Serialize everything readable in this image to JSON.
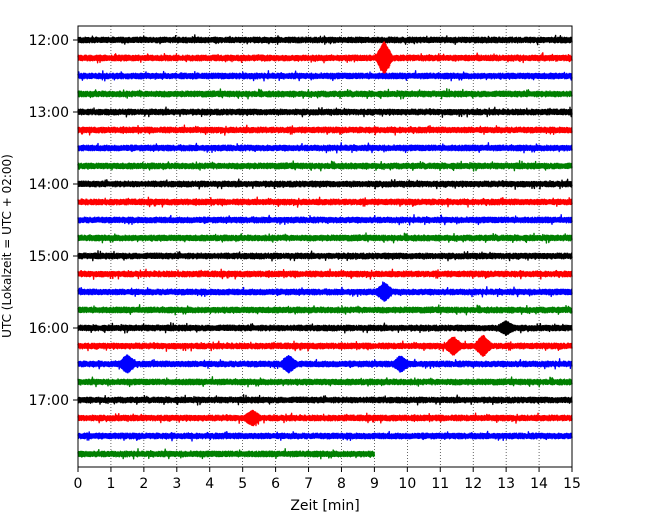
{
  "chart_data": {
    "type": "line",
    "title": "",
    "xlabel": "Zeit  [min]",
    "ylabel": "UTC (Lokalzeit = UTC + 02:00)",
    "xlim": [
      0,
      15
    ],
    "x_ticks": [
      0,
      1,
      2,
      3,
      4,
      5,
      6,
      7,
      8,
      9,
      10,
      11,
      12,
      13,
      14,
      15
    ],
    "y_tick_labels": [
      "12:00",
      "13:00",
      "14:00",
      "15:00",
      "16:00",
      "17:00"
    ],
    "grid": "vertical-dotted",
    "series": [
      {
        "start": "12:00",
        "color": "#000000",
        "duration_min": 15
      },
      {
        "start": "12:15",
        "color": "#ff0000",
        "duration_min": 15,
        "events": [
          {
            "t": 9.3,
            "amp": 1.0
          }
        ]
      },
      {
        "start": "12:30",
        "color": "#0000ff",
        "duration_min": 15
      },
      {
        "start": "12:45",
        "color": "#008000",
        "duration_min": 15
      },
      {
        "start": "13:00",
        "color": "#000000",
        "duration_min": 15
      },
      {
        "start": "13:15",
        "color": "#ff0000",
        "duration_min": 15
      },
      {
        "start": "13:30",
        "color": "#0000ff",
        "duration_min": 15
      },
      {
        "start": "13:45",
        "color": "#008000",
        "duration_min": 15
      },
      {
        "start": "14:00",
        "color": "#000000",
        "duration_min": 15
      },
      {
        "start": "14:15",
        "color": "#ff0000",
        "duration_min": 15
      },
      {
        "start": "14:30",
        "color": "#0000ff",
        "duration_min": 15
      },
      {
        "start": "14:45",
        "color": "#008000",
        "duration_min": 15
      },
      {
        "start": "15:00",
        "color": "#000000",
        "duration_min": 15
      },
      {
        "start": "15:15",
        "color": "#ff0000",
        "duration_min": 15
      },
      {
        "start": "15:30",
        "color": "#0000ff",
        "duration_min": 15,
        "events": [
          {
            "t": 9.3,
            "amp": 0.5
          }
        ]
      },
      {
        "start": "15:45",
        "color": "#008000",
        "duration_min": 15
      },
      {
        "start": "16:00",
        "color": "#000000",
        "duration_min": 15,
        "events": [
          {
            "t": 13.0,
            "amp": 0.35
          }
        ]
      },
      {
        "start": "16:15",
        "color": "#ff0000",
        "duration_min": 15,
        "events": [
          {
            "t": 11.4,
            "amp": 0.5
          },
          {
            "t": 12.3,
            "amp": 0.6
          }
        ]
      },
      {
        "start": "16:30",
        "color": "#0000ff",
        "duration_min": 15,
        "events": [
          {
            "t": 1.5,
            "amp": 0.5
          },
          {
            "t": 6.4,
            "amp": 0.45
          },
          {
            "t": 9.8,
            "amp": 0.4
          }
        ]
      },
      {
        "start": "16:45",
        "color": "#008000",
        "duration_min": 15
      },
      {
        "start": "17:00",
        "color": "#000000",
        "duration_min": 15
      },
      {
        "start": "17:15",
        "color": "#ff0000",
        "duration_min": 15,
        "events": [
          {
            "t": 5.3,
            "amp": 0.4
          }
        ]
      },
      {
        "start": "17:30",
        "color": "#0000ff",
        "duration_min": 15
      },
      {
        "start": "17:45",
        "color": "#008000",
        "duration_min": 9
      }
    ]
  }
}
